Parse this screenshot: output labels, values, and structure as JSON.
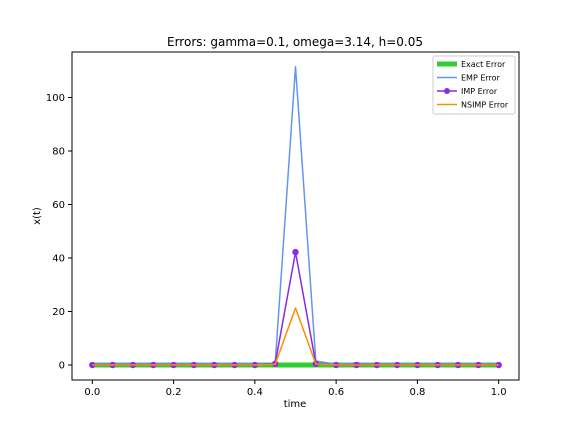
{
  "chart_data": {
    "type": "line",
    "title": "Errors: gamma=0.1, omega=3.14, h=0.05",
    "xlabel": "time",
    "ylabel": "x(t)",
    "xlim": [
      -0.05,
      1.05
    ],
    "ylim": [
      -5.6,
      117
    ],
    "xticks": [
      0.0,
      0.2,
      0.4,
      0.6,
      0.8,
      1.0
    ],
    "xtick_labels": [
      "0.0",
      "0.2",
      "0.4",
      "0.6",
      "0.8",
      "1.0"
    ],
    "yticks": [
      0,
      20,
      40,
      60,
      80,
      100
    ],
    "ytick_labels": [
      "0",
      "20",
      "40",
      "60",
      "80",
      "100"
    ],
    "legend_position": "top-right",
    "x": [
      0.0,
      0.05,
      0.1,
      0.15,
      0.2,
      0.25,
      0.3,
      0.35,
      0.4,
      0.45,
      0.5,
      0.55,
      0.6,
      0.65,
      0.7,
      0.75,
      0.8,
      0.85,
      0.9,
      0.95,
      1.0
    ],
    "series": [
      {
        "name": "Exact Error",
        "color": "#32cd32",
        "style": "thick-line",
        "values": [
          0,
          0,
          0,
          0,
          0,
          0,
          0,
          0,
          0,
          0,
          0,
          0,
          0,
          0,
          0,
          0,
          0,
          0,
          0,
          0,
          0
        ]
      },
      {
        "name": "EMP Error",
        "color": "#6495ed",
        "style": "line",
        "values": [
          0.5,
          0.5,
          0.5,
          0.5,
          0.5,
          0.5,
          0.5,
          0.5,
          0.5,
          0.5,
          111.5,
          1.5,
          0.3,
          0.8,
          0.3,
          0.6,
          0.3,
          0.5,
          0.3,
          0.5,
          0.3
        ]
      },
      {
        "name": "IMP Error",
        "color": "#8a2be2",
        "style": "line-marker",
        "values": [
          0,
          0,
          0,
          0,
          0,
          0,
          0,
          0,
          0,
          0.5,
          42.2,
          0.5,
          0,
          0,
          0,
          0,
          0,
          0,
          0,
          0,
          0
        ]
      },
      {
        "name": "NSIMP Error",
        "color": "#ff8c00",
        "style": "line",
        "values": [
          0,
          0,
          0,
          0,
          0,
          0,
          0,
          0,
          0,
          0.3,
          21.3,
          0.4,
          0,
          0,
          0,
          0,
          0,
          0,
          0,
          0,
          0
        ]
      }
    ]
  }
}
